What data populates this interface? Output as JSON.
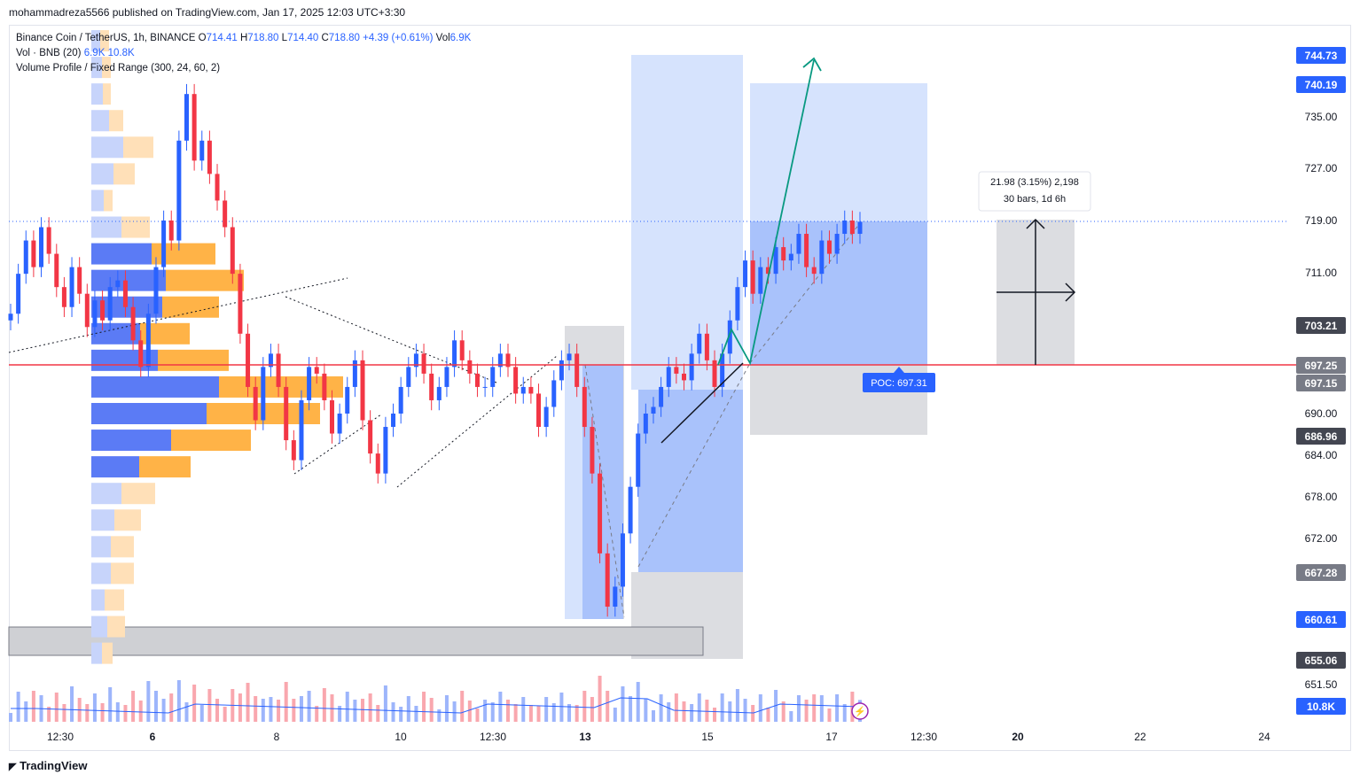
{
  "header": {
    "text": "mohammadreza5566 published on TradingView.com, Jan 17, 2025 12:03 UTC+3:30"
  },
  "legend": {
    "symbol": "Binance Coin / TetherUS, 1h, BINANCE",
    "o_label": "O",
    "o_value": "714.41",
    "h_label": "H",
    "h_value": "718.80",
    "l_label": "L",
    "l_value": "714.40",
    "c_label": "C",
    "c_value": "718.80",
    "change": "+4.39 (+0.61%)",
    "vol_label": "Vol",
    "vol_value": "6.9K",
    "vol_indicator": "Vol · BNB (20)",
    "vol_indicator_v1": "6.9K",
    "vol_indicator_v2": "10.8K",
    "vp_indicator": "Volume Profile / Fixed Range (300, 24, 60, 2)"
  },
  "footer": {
    "logo_text": "TradingView"
  },
  "chart_data": {
    "type": "candlestick",
    "symbol": "BNBUSDT",
    "timeframe": "1h",
    "x_ticks": [
      "12:30",
      "6",
      "8",
      "10",
      "12:30",
      "13",
      "15",
      "17",
      "12:30",
      "20",
      "22",
      "24"
    ],
    "y_ticks": [
      "735.00",
      "727.00",
      "719.00",
      "711.00",
      "690.00",
      "684.00",
      "678.00",
      "672.00",
      "651.50"
    ],
    "ylim": [
      648,
      750
    ],
    "price_labels": [
      {
        "value": "744.73",
        "color": "#2962ff"
      },
      {
        "value": "740.19",
        "color": "#2962ff"
      },
      {
        "value": "703.21",
        "color": "#434651"
      },
      {
        "value": "697.25",
        "color": "#787b86"
      },
      {
        "value": "697.15",
        "color": "#787b86"
      },
      {
        "value": "686.96",
        "color": "#434651"
      },
      {
        "value": "667.28",
        "color": "#787b86"
      },
      {
        "value": "660.61",
        "color": "#2962ff"
      },
      {
        "value": "655.06",
        "color": "#434651"
      },
      {
        "value": "10.8K",
        "color": "#2962ff"
      }
    ],
    "poc_label": "POC: 697.31",
    "poc_value": 697.31,
    "measure_label_1": "21.98 (3.15%) 2,198",
    "measure_label_2": "30 bars, 1d 6h",
    "close_series": [
      705,
      711,
      716,
      712,
      718,
      714,
      709,
      706,
      712,
      708,
      703,
      707,
      704,
      709,
      710,
      706,
      701,
      697,
      705,
      712,
      719,
      716,
      731,
      738,
      728,
      731,
      726,
      722,
      718,
      711,
      702,
      694,
      689,
      697,
      699,
      694,
      686,
      683,
      692,
      697,
      696,
      692,
      687,
      690,
      694,
      698,
      689,
      684,
      681,
      688,
      690,
      694,
      697,
      699,
      696,
      692,
      694,
      697,
      701,
      698,
      696,
      694,
      694,
      697,
      699,
      697,
      693,
      694,
      693,
      688,
      691,
      695,
      698,
      699,
      694,
      688,
      681,
      669,
      661,
      664,
      672,
      679,
      687,
      690,
      691,
      694,
      697,
      696,
      695,
      699,
      702,
      698,
      694,
      699,
      704,
      709,
      713,
      708,
      712,
      711,
      715,
      713,
      714,
      717,
      712,
      711,
      716,
      714,
      717,
      719,
      717,
      718.8
    ],
    "volume_profile": [
      {
        "price": 746,
        "buy": 10,
        "sell": 10
      },
      {
        "price": 742,
        "buy": 12,
        "sell": 10
      },
      {
        "price": 738,
        "buy": 13,
        "sell": 9
      },
      {
        "price": 734,
        "buy": 20,
        "sell": 16
      },
      {
        "price": 730,
        "buy": 36,
        "sell": 34
      },
      {
        "price": 726,
        "buy": 25,
        "sell": 24
      },
      {
        "price": 722,
        "buy": 14,
        "sell": 10
      },
      {
        "price": 718,
        "buy": 34,
        "sell": 32
      },
      {
        "price": 714,
        "buy": 68,
        "sell": 72
      },
      {
        "price": 710,
        "buy": 84,
        "sell": 88
      },
      {
        "price": 706,
        "buy": 80,
        "sell": 64
      },
      {
        "price": 702,
        "buy": 55,
        "sell": 56
      },
      {
        "price": 698,
        "buy": 75,
        "sell": 80
      },
      {
        "price": 694,
        "buy": 144,
        "sell": 140
      },
      {
        "price": 690,
        "buy": 130,
        "sell": 128
      },
      {
        "price": 686,
        "buy": 90,
        "sell": 90
      },
      {
        "price": 682,
        "buy": 54,
        "sell": 58
      },
      {
        "price": 678,
        "buy": 34,
        "sell": 38
      },
      {
        "price": 674,
        "buy": 26,
        "sell": 30
      },
      {
        "price": 670,
        "buy": 22,
        "sell": 26
      },
      {
        "price": 666,
        "buy": 22,
        "sell": 26
      },
      {
        "price": 662,
        "buy": 15,
        "sell": 22
      },
      {
        "price": 658,
        "buy": 18,
        "sell": 20
      },
      {
        "price": 654,
        "buy": 12,
        "sell": 12
      }
    ]
  },
  "colors": {
    "up": "#2962ff",
    "down": "#f23645",
    "poc_line": "#f23645",
    "vp_buy": "#5b7bf5",
    "vp_sell": "#ffb347",
    "zone_blue": "#c9dafc",
    "zone_gray": "#d1d4dc",
    "teal": "#089981"
  }
}
